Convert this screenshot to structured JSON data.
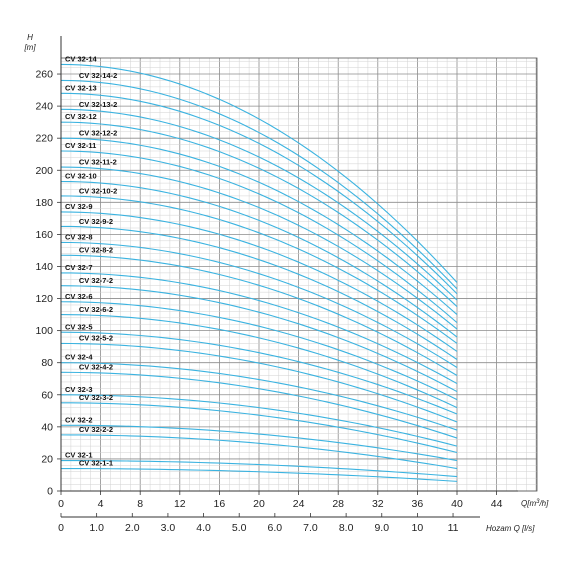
{
  "chart_data": {
    "type": "line",
    "title": "",
    "ylabel": "H",
    "ylabel_unit": "[m]",
    "xlabel": "Q[m³/h]",
    "xlabel_secondary": "Hozam Q [l/s]",
    "xlim": [
      0,
      48
    ],
    "ylim": [
      0,
      270
    ],
    "x_ticks": [
      "0",
      "4",
      "8",
      "12",
      "16",
      "20",
      "24",
      "28",
      "32",
      "36",
      "40",
      "44"
    ],
    "x_secondary_ticks": [
      "0",
      "1.0",
      "2.0",
      "3.0",
      "4.0",
      "5.0",
      "6.0",
      "7.0",
      "8.0",
      "9.0",
      "10",
      "11"
    ],
    "y_ticks": [
      "0",
      "20",
      "40",
      "60",
      "80",
      "100",
      "120",
      "140",
      "160",
      "180",
      "200",
      "220",
      "240",
      "260"
    ],
    "grid": true,
    "series_color": "#3bb3e0",
    "curve_max_flow": 40,
    "series": [
      {
        "name": "CV 32-1-1",
        "shutoff_head": 14,
        "head_at_max_flow": 6
      },
      {
        "name": "CV 32-1",
        "shutoff_head": 19,
        "head_at_max_flow": 9
      },
      {
        "name": "CV 32-2-2",
        "shutoff_head": 35,
        "head_at_max_flow": 14
      },
      {
        "name": "CV 32-2",
        "shutoff_head": 41,
        "head_at_max_flow": 19
      },
      {
        "name": "CV 32-3-2",
        "shutoff_head": 55,
        "head_at_max_flow": 24
      },
      {
        "name": "CV 32-3",
        "shutoff_head": 60,
        "head_at_max_flow": 28
      },
      {
        "name": "CV 32-4-2",
        "shutoff_head": 74,
        "head_at_max_flow": 33
      },
      {
        "name": "CV 32-4",
        "shutoff_head": 80,
        "head_at_max_flow": 38
      },
      {
        "name": "CV 32-5-2",
        "shutoff_head": 92,
        "head_at_max_flow": 43
      },
      {
        "name": "CV 32-5",
        "shutoff_head": 99,
        "head_at_max_flow": 48
      },
      {
        "name": "CV 32-6-2",
        "shutoff_head": 110,
        "head_at_max_flow": 52
      },
      {
        "name": "CV 32-6",
        "shutoff_head": 118,
        "head_at_max_flow": 57
      },
      {
        "name": "CV 32-7-2",
        "shutoff_head": 128,
        "head_at_max_flow": 62
      },
      {
        "name": "CV 32-7",
        "shutoff_head": 136,
        "head_at_max_flow": 67
      },
      {
        "name": "CV 32-8-2",
        "shutoff_head": 147,
        "head_at_max_flow": 72
      },
      {
        "name": "CV 32-8",
        "shutoff_head": 155,
        "head_at_max_flow": 77
      },
      {
        "name": "CV 32-9-2",
        "shutoff_head": 165,
        "head_at_max_flow": 82
      },
      {
        "name": "CV 32-9",
        "shutoff_head": 174,
        "head_at_max_flow": 87
      },
      {
        "name": "CV 32-10-2",
        "shutoff_head": 184,
        "head_at_max_flow": 92
      },
      {
        "name": "CV 32-10",
        "shutoff_head": 193,
        "head_at_max_flow": 96
      },
      {
        "name": "CV 32-11-2",
        "shutoff_head": 202,
        "head_at_max_flow": 101
      },
      {
        "name": "CV 32-11",
        "shutoff_head": 212,
        "head_at_max_flow": 105
      },
      {
        "name": "CV 32-12-2",
        "shutoff_head": 220,
        "head_at_max_flow": 110
      },
      {
        "name": "CV 32-12",
        "shutoff_head": 230,
        "head_at_max_flow": 115
      },
      {
        "name": "CV 32-13-2",
        "shutoff_head": 238,
        "head_at_max_flow": 119
      },
      {
        "name": "CV 32-13",
        "shutoff_head": 248,
        "head_at_max_flow": 123
      },
      {
        "name": "CV 32-14-2",
        "shutoff_head": 256,
        "head_at_max_flow": 126
      },
      {
        "name": "CV 32-14",
        "shutoff_head": 266,
        "head_at_max_flow": 130
      }
    ]
  }
}
